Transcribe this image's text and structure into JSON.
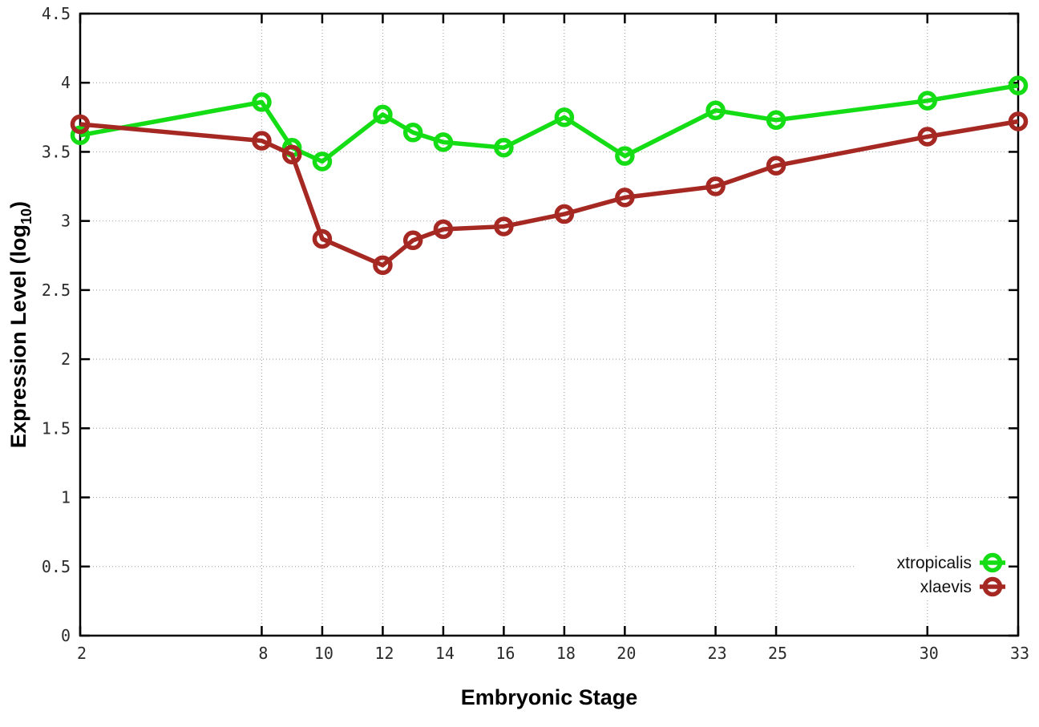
{
  "chart_data": {
    "type": "line",
    "title": "",
    "xlabel": "Embryonic Stage",
    "ylabel": "Expression Level (log10)",
    "ylabel_parts": {
      "main": "Expression Level (log",
      "sub": "10",
      "end": ")"
    },
    "xlim": [
      2,
      33
    ],
    "ylim": [
      0,
      4.5
    ],
    "x_ticks": [
      2,
      8,
      10,
      12,
      14,
      16,
      18,
      20,
      23,
      25,
      30,
      33
    ],
    "y_ticks": [
      0,
      0.5,
      1,
      1.5,
      2,
      2.5,
      3,
      3.5,
      4,
      4.5
    ],
    "grid": true,
    "grid_color": "#aaaaaa",
    "border_color": "#000000",
    "marker": "open-circle",
    "legend_position": "bottom-right",
    "x": [
      2,
      8,
      9,
      10,
      12,
      13,
      14,
      16,
      18,
      20,
      23,
      25,
      30,
      33
    ],
    "series": [
      {
        "name": "xtropicalis",
        "color": "#15dd15",
        "values": [
          3.62,
          3.86,
          3.53,
          3.43,
          3.77,
          3.64,
          3.57,
          3.53,
          3.75,
          3.47,
          3.8,
          3.73,
          3.87,
          3.98
        ]
      },
      {
        "name": "xlaevis",
        "color": "#a62823",
        "values": [
          3.7,
          3.58,
          3.48,
          2.87,
          2.68,
          2.86,
          2.94,
          2.96,
          3.05,
          3.17,
          3.25,
          3.4,
          3.61,
          3.72
        ]
      }
    ]
  }
}
